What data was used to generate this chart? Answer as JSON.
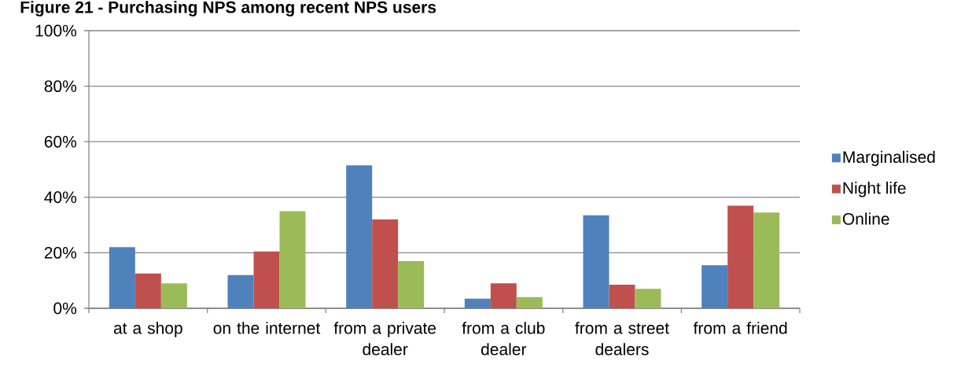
{
  "chart_data": {
    "type": "bar",
    "title": "Figure 21 - Purchasing NPS among recent NPS users",
    "categories": [
      "at a shop",
      "on the internet",
      "from a private dealer",
      "from a club dealer",
      "from a street dealers",
      "from a friend"
    ],
    "series": [
      {
        "name": "Marginalised",
        "color": "#4f81bd",
        "values": [
          22,
          12,
          51.5,
          3.5,
          33.5,
          15.5
        ]
      },
      {
        "name": "Night life",
        "color": "#c0504d",
        "values": [
          12.5,
          20.5,
          32,
          9,
          8.5,
          37
        ]
      },
      {
        "name": "Online",
        "color": "#9bbb59",
        "values": [
          9,
          35,
          17,
          4,
          7,
          34.5
        ]
      }
    ],
    "ylim": [
      0,
      100
    ],
    "yticks": [
      {
        "value": 0,
        "label": "0%"
      },
      {
        "value": 20,
        "label": "20%"
      },
      {
        "value": 40,
        "label": "40%"
      },
      {
        "value": 60,
        "label": "60%"
      },
      {
        "value": 80,
        "label": "80%"
      },
      {
        "value": 100,
        "label": "100%"
      }
    ],
    "grid": "y",
    "legend": "right"
  }
}
